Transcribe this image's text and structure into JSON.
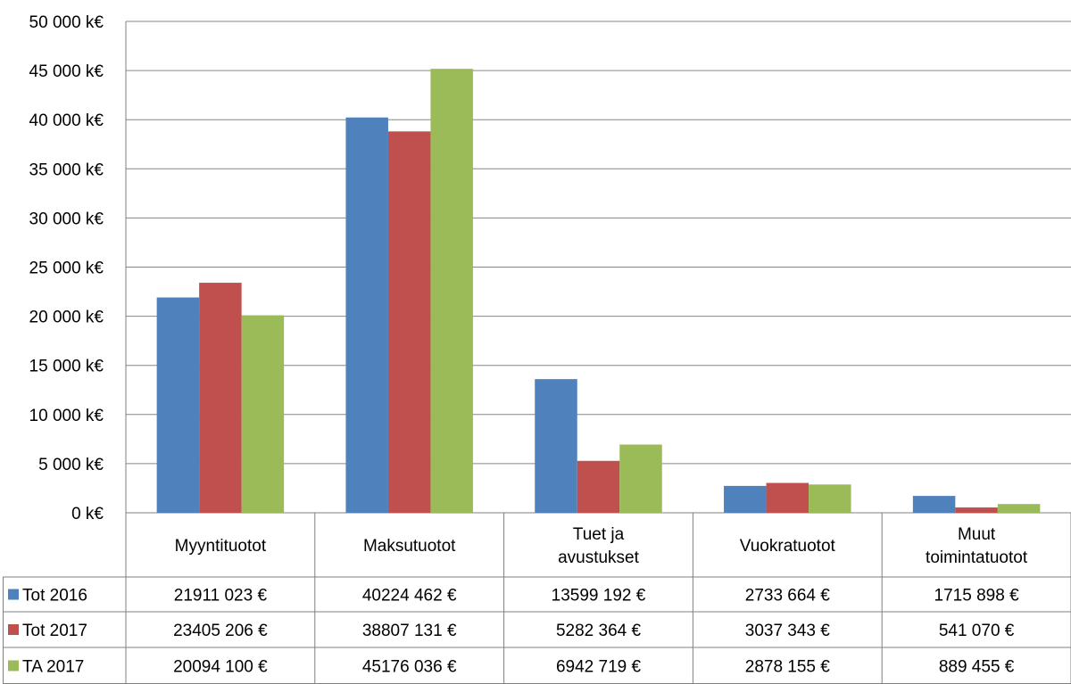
{
  "chart_data": {
    "type": "bar",
    "title": "",
    "xlabel": "",
    "ylabel": "",
    "ylim": [
      0,
      50000
    ],
    "ytick_step": 5000,
    "y_unit_suffix": " k€",
    "y_thousands_separator": " ",
    "grid": true,
    "legend_position": "data-table-left",
    "categories": [
      [
        "Myyntituotot"
      ],
      [
        "Maksutuotot"
      ],
      [
        "Tuet ja",
        "avustukset"
      ],
      [
        "Vuokratuotot"
      ],
      [
        "Muut",
        "toimintatuotot"
      ]
    ],
    "series": [
      {
        "name": "Tot 2016",
        "color": "#4F81BD",
        "values": [
          21911023,
          40224462,
          13599192,
          2733664,
          1715898
        ],
        "labels": [
          "21911 023 €",
          "40224 462 €",
          "13599 192 €",
          "2733 664 €",
          "1715 898 €"
        ]
      },
      {
        "name": "Tot 2017",
        "color": "#C0504D",
        "values": [
          23405206,
          38807131,
          5282364,
          3037343,
          541070
        ],
        "labels": [
          "23405 206 €",
          "38807 131 €",
          "5282 364 €",
          "3037 343 €",
          "541 070 €"
        ]
      },
      {
        "name": "TA 2017",
        "color": "#9BBB59",
        "values": [
          20094100,
          45176036,
          6942719,
          2878155,
          889455
        ],
        "labels": [
          "20094 100 €",
          "45176 036 €",
          "6942 719 €",
          "2878 155 €",
          "889 455 €"
        ]
      }
    ]
  }
}
